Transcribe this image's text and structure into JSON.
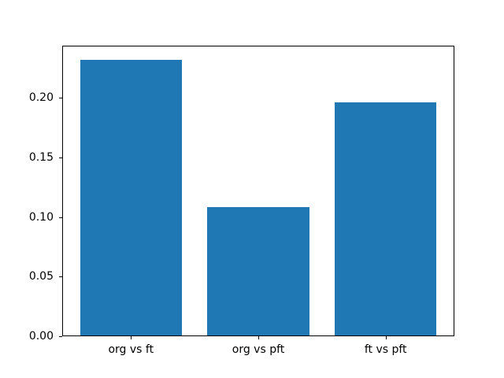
{
  "chart_data": {
    "type": "bar",
    "title": "",
    "xlabel": "",
    "ylabel": "",
    "categories": [
      "org vs ft",
      "org vs pft",
      "ft vs pft"
    ],
    "values": [
      0.232,
      0.108,
      0.196
    ],
    "ylim": [
      0,
      0.2436
    ],
    "yticks": [
      0.0,
      0.05,
      0.1,
      0.15,
      0.2
    ],
    "ytick_labels": [
      "0.00",
      "0.05",
      "0.10",
      "0.15",
      "0.20"
    ],
    "bar_color": "#1f77b4",
    "background_color": "#ffffff",
    "spine_color": "#000000",
    "bar_width_fraction": 0.8,
    "grid": false,
    "legend": null
  }
}
